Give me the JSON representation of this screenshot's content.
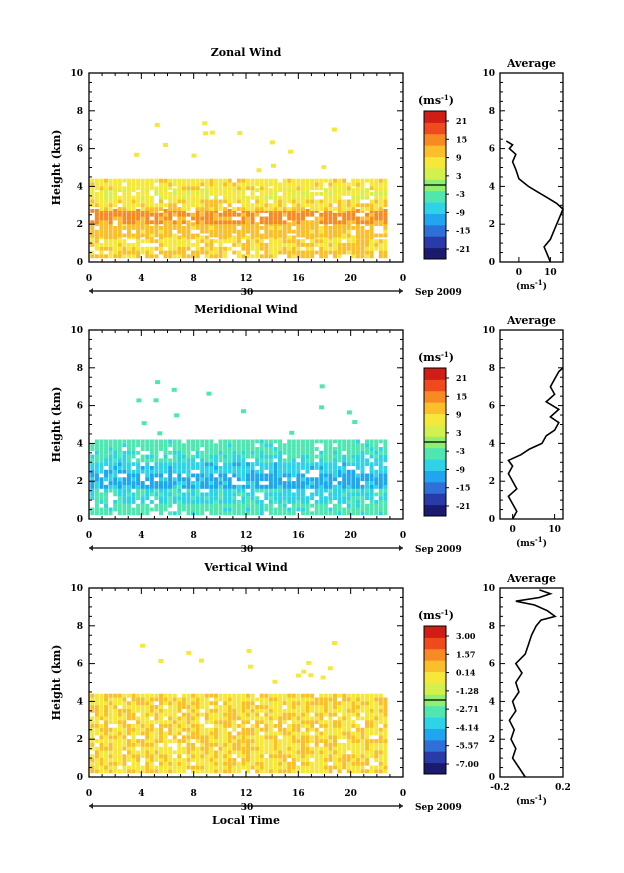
{
  "chart_data": [
    {
      "type": "heatmap",
      "title": "Zonal Wind",
      "ylabel": "Height (km)",
      "xlabel": "",
      "xlim": [
        0,
        24
      ],
      "ylim": [
        0,
        10
      ],
      "xticks": [
        "0",
        "4",
        "8",
        "12",
        "16",
        "20",
        "0"
      ],
      "yticks": [
        "0",
        "2",
        "4",
        "6",
        "8",
        "10"
      ],
      "date_day": "30",
      "date_label": "Sep 2009",
      "colorbar": {
        "unit": "(ms",
        "unit_exp": "-1",
        "unit_close": ")",
        "ticks": [
          "21",
          "15",
          "9",
          "3",
          "-3",
          "-9",
          "-15",
          "-21"
        ],
        "range": [
          -24,
          24
        ]
      },
      "data_bands": [
        {
          "height": [
            0.2,
            0.6
          ],
          "value": 10
        },
        {
          "height": [
            0.6,
            1.3
          ],
          "value": 9
        },
        {
          "height": [
            1.3,
            2.0
          ],
          "value": 11
        },
        {
          "height": [
            2.0,
            2.7
          ],
          "value": 14
        },
        {
          "height": [
            2.7,
            3.3
          ],
          "value": 9
        },
        {
          "height": [
            3.3,
            3.8
          ],
          "value": 6
        },
        {
          "height": [
            3.8,
            4.3
          ],
          "value": 8
        }
      ],
      "average_profile": {
        "title": "Average",
        "xlabel": "(ms",
        "xlabel_exp": "-1",
        "xlabel_close": ")",
        "xlim": [
          -6,
          14
        ],
        "xticks": [
          "0",
          "10"
        ],
        "yticks": [
          "0",
          "2",
          "4",
          "6",
          "8",
          "10"
        ],
        "ylim": [
          0,
          10
        ],
        "points": [
          [
            10,
            0.0
          ],
          [
            9,
            0.4
          ],
          [
            8,
            0.8
          ],
          [
            10,
            1.2
          ],
          [
            11,
            1.6
          ],
          [
            12,
            2.0
          ],
          [
            13,
            2.4
          ],
          [
            14,
            2.8
          ],
          [
            12,
            3.1
          ],
          [
            9,
            3.4
          ],
          [
            6,
            3.7
          ],
          [
            3,
            4.0
          ],
          [
            0,
            4.4
          ],
          [
            -1,
            4.9
          ],
          [
            -2,
            5.3
          ],
          [
            -1,
            5.7
          ],
          [
            -3,
            6.0
          ],
          [
            -2,
            6.2
          ],
          [
            -4,
            6.4
          ]
        ]
      }
    },
    {
      "type": "heatmap",
      "title": "Meridional Wind",
      "ylabel": "Height (km)",
      "xlabel": "",
      "xlim": [
        0,
        24
      ],
      "ylim": [
        0,
        10
      ],
      "xticks": [
        "0",
        "4",
        "8",
        "12",
        "16",
        "20",
        "0"
      ],
      "yticks": [
        "0",
        "2",
        "4",
        "6",
        "8",
        "10"
      ],
      "date_day": "30",
      "date_label": "Sep 2009",
      "colorbar": {
        "unit": "(ms",
        "unit_exp": "-1",
        "unit_close": ")",
        "ticks": [
          "21",
          "15",
          "9",
          "3",
          "-3",
          "-9",
          "-15",
          "-21"
        ],
        "range": [
          -24,
          24
        ]
      },
      "data_bands": [
        {
          "height": [
            0.2,
            0.8
          ],
          "value": -4
        },
        {
          "height": [
            0.8,
            1.6
          ],
          "value": -6
        },
        {
          "height": [
            1.6,
            2.4
          ],
          "value": -10
        },
        {
          "height": [
            2.4,
            3.0
          ],
          "value": -8
        },
        {
          "height": [
            3.0,
            3.6
          ],
          "value": -5
        },
        {
          "height": [
            3.6,
            4.1
          ],
          "value": -4
        }
      ],
      "average_profile": {
        "title": "Average",
        "xlabel": "(ms",
        "xlabel_exp": "-1",
        "xlabel_close": ")",
        "xlim": [
          -3,
          12
        ],
        "xticks": [
          "0",
          "10"
        ],
        "yticks": [
          "0",
          "2",
          "4",
          "6",
          "8",
          "10"
        ],
        "ylim": [
          0,
          10
        ],
        "points": [
          [
            0,
            0.0
          ],
          [
            1,
            0.4
          ],
          [
            0,
            0.8
          ],
          [
            -1,
            1.2
          ],
          [
            1,
            1.6
          ],
          [
            0,
            2.0
          ],
          [
            -1,
            2.4
          ],
          [
            0,
            2.8
          ],
          [
            -1,
            3.1
          ],
          [
            2,
            3.4
          ],
          [
            4,
            3.7
          ],
          [
            7,
            4.0
          ],
          [
            8,
            4.4
          ],
          [
            10,
            4.7
          ],
          [
            11,
            5.1
          ],
          [
            9,
            5.4
          ],
          [
            11,
            5.8
          ],
          [
            8,
            6.2
          ],
          [
            10,
            6.6
          ],
          [
            9,
            7.0
          ],
          [
            10,
            7.4
          ],
          [
            11,
            7.8
          ],
          [
            12,
            8.0
          ]
        ]
      }
    },
    {
      "type": "heatmap",
      "title": "Vertical Wind",
      "ylabel": "Height (km)",
      "xlabel": "Local Time",
      "xlim": [
        0,
        24
      ],
      "ylim": [
        0,
        10
      ],
      "xticks": [
        "0",
        "4",
        "8",
        "12",
        "16",
        "20",
        "0"
      ],
      "yticks": [
        "0",
        "2",
        "4",
        "6",
        "8",
        "10"
      ],
      "date_day": "30",
      "date_label": "Sep 2009",
      "colorbar": {
        "unit": "(ms",
        "unit_exp": "-1",
        "unit_close": ")",
        "ticks": [
          "3.00",
          "1.57",
          "0.14",
          "-1.28",
          "-2.71",
          "-4.14",
          "-5.57",
          "-7.00"
        ],
        "range": [
          -7.7,
          3.7
        ]
      },
      "data_bands": [
        {
          "height": [
            0.2,
            3.6
          ],
          "value": 0.1
        },
        {
          "height": [
            3.6,
            4.3
          ],
          "value": 0.1
        }
      ],
      "average_profile": {
        "title": "Average",
        "xlabel": "(ms",
        "xlabel_exp": "-1",
        "xlabel_close": ")",
        "xlim": [
          -0.2,
          0.2
        ],
        "xticks": [
          "-0.2",
          "0.2"
        ],
        "yticks": [
          "0",
          "2",
          "4",
          "6",
          "8",
          "10"
        ],
        "ylim": [
          0,
          10
        ],
        "points": [
          [
            -0.04,
            0.0
          ],
          [
            -0.08,
            0.5
          ],
          [
            -0.12,
            1.0
          ],
          [
            -0.1,
            1.5
          ],
          [
            -0.13,
            2.0
          ],
          [
            -0.11,
            2.5
          ],
          [
            -0.14,
            3.0
          ],
          [
            -0.1,
            3.5
          ],
          [
            -0.12,
            4.0
          ],
          [
            -0.08,
            4.5
          ],
          [
            -0.1,
            5.0
          ],
          [
            -0.06,
            5.5
          ],
          [
            -0.1,
            6.0
          ],
          [
            -0.04,
            6.5
          ],
          [
            -0.02,
            7.0
          ],
          [
            0.0,
            7.5
          ],
          [
            0.03,
            8.0
          ],
          [
            0.06,
            8.3
          ],
          [
            0.15,
            8.5
          ],
          [
            0.1,
            8.8
          ],
          [
            0.02,
            9.1
          ],
          [
            -0.1,
            9.3
          ],
          [
            0.05,
            9.5
          ],
          [
            0.12,
            9.7
          ],
          [
            0.05,
            9.9
          ]
        ]
      }
    }
  ]
}
